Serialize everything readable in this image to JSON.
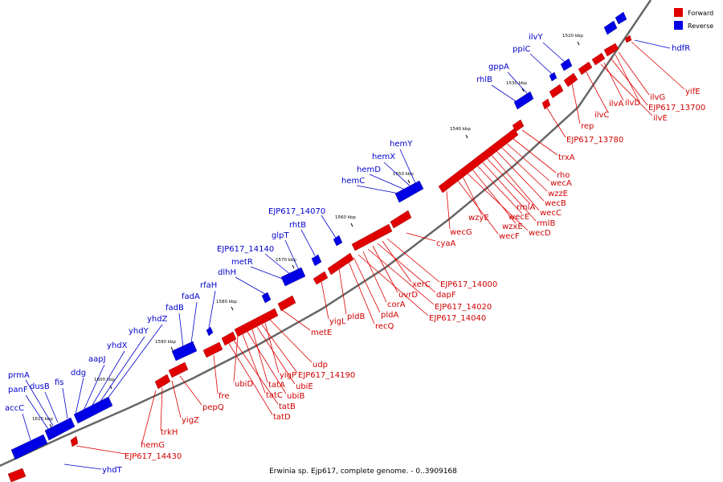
{
  "caption": "Erwinia sp. Ejp617, complete genome. - 0..3909168",
  "colors": {
    "forward": "#e00000",
    "reverse": "#0000e6",
    "backbone": "#666666"
  },
  "legend": [
    {
      "label": "Forward",
      "color": "#e00000"
    },
    {
      "label": "Reverse",
      "color": "#0000e6"
    }
  ],
  "ticks": [
    "1520 kbp",
    "1530 kbp",
    "1540 kbp",
    "1550 kbp",
    "1560 kbp",
    "1570 kbp",
    "1580 kbp",
    "1590 kbp",
    "1600 kbp",
    "1610 kbp"
  ],
  "forward_genes": [
    "yifE",
    "ilvG",
    "ilvD",
    "EJP617_13700",
    "ilvA",
    "ilvE",
    "ilvC",
    "rep",
    "EJP617_13780",
    "trxA",
    "rho",
    "wecA",
    "wzzE",
    "wecB",
    "wecC",
    "rmlA",
    "rmlB",
    "wecE",
    "wzxE",
    "wecD",
    "wzyE",
    "wecF",
    "wecG",
    "cyaA",
    "EJP617_14000",
    "xerC",
    "dapF",
    "uvrD",
    "EJP617_14020",
    "corA",
    "EJP617_14040",
    "pldA",
    "recQ",
    "pldB",
    "yigL",
    "metE",
    "udp",
    "yigP",
    "EJP617_14190",
    "ubiE",
    "tatA",
    "ubiB",
    "tatC",
    "ubiD",
    "tatB",
    "tatD",
    "fre",
    "pepQ",
    "yigZ",
    "trkH",
    "hemG",
    "EJP617_14430"
  ],
  "reverse_genes": [
    "hdfR",
    "ilvY",
    "ppiC",
    "gppA",
    "rhlB",
    "hemY",
    "hemX",
    "hemD",
    "hemC",
    "EJP617_14070",
    "rhtB",
    "glpT",
    "EJP617_14140",
    "metR",
    "dlhH",
    "rfaH",
    "fadA",
    "fadB",
    "yhdZ",
    "yhdY",
    "yhdX",
    "aapJ",
    "ddg",
    "fis",
    "prmA",
    "dusB",
    "panF",
    "accC",
    "yhdT"
  ]
}
